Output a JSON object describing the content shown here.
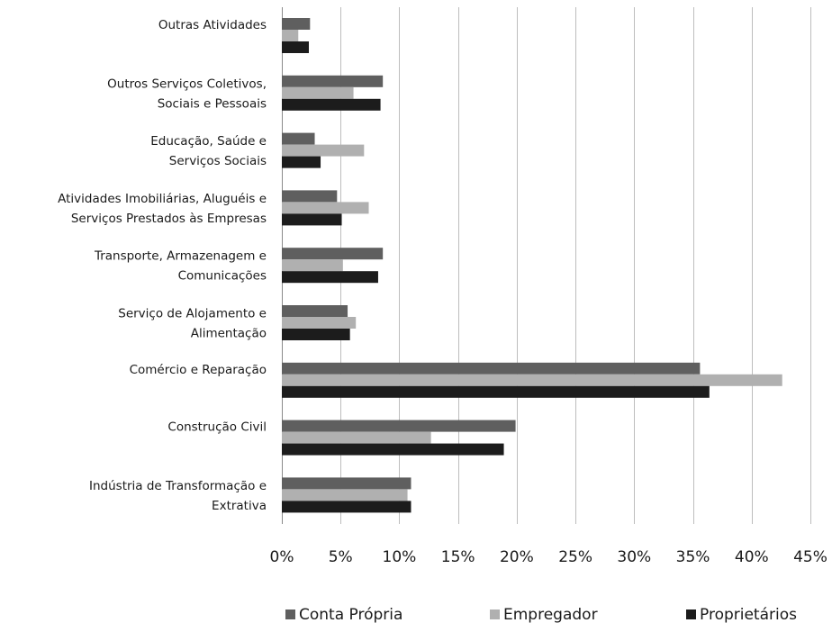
{
  "chart_data": {
    "type": "bar",
    "orientation": "horizontal",
    "categories": [
      [
        "Outras Atividades"
      ],
      [
        "Outros Serviços Coletivos,",
        "Sociais e Pessoais"
      ],
      [
        "Educação, Saúde e",
        "Serviços Sociais"
      ],
      [
        "Atividades Imobiliárias,  Aluguéis e",
        "Serviços Prestados às Empresas"
      ],
      [
        "Transporte, Armazenagem e",
        "Comunicações"
      ],
      [
        "Serviço de Alojamento e",
        "Alimentação"
      ],
      [
        "Comércio e Reparação"
      ],
      [
        "Construção Civil"
      ],
      [
        "Indústria de Transformação e",
        "Extrativa"
      ]
    ],
    "series": [
      {
        "name": "Conta Própria",
        "color": "#5f5f5f",
        "values": [
          2.4,
          8.6,
          2.8,
          4.7,
          8.6,
          5.6,
          35.6,
          19.9,
          11.0
        ]
      },
      {
        "name": "Empregador",
        "color": "#b0b0b0",
        "values": [
          1.4,
          6.1,
          7.0,
          7.4,
          5.2,
          6.3,
          42.6,
          12.7,
          10.7
        ]
      },
      {
        "name": "Proprietários",
        "color": "#1c1c1c",
        "values": [
          2.3,
          8.4,
          3.3,
          5.1,
          8.2,
          5.8,
          36.4,
          18.9,
          11.0
        ]
      }
    ],
    "xlim": [
      0,
      45
    ],
    "xticks": [
      "0%",
      "5%",
      "10%",
      "15%",
      "20%",
      "25%",
      "30%",
      "35%",
      "40%",
      "45%"
    ],
    "grid": true,
    "legend_position": "bottom",
    "title": "",
    "xlabel": "",
    "ylabel": ""
  }
}
